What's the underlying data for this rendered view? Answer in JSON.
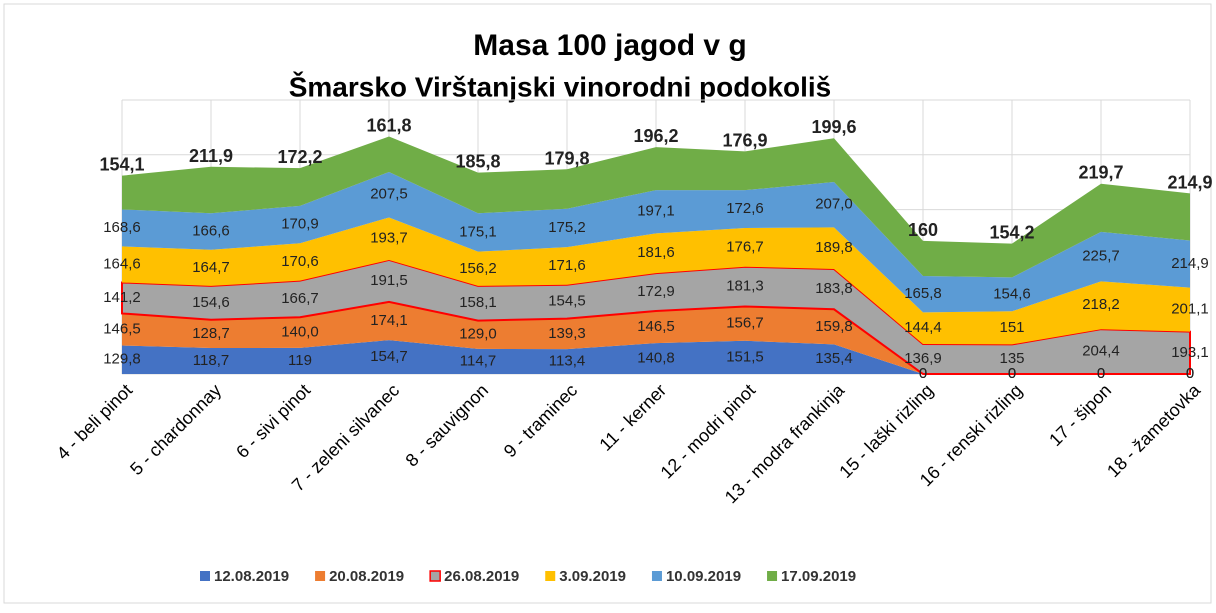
{
  "chart_data": {
    "type": "stacked_area",
    "title": "Masa 100 jagod v g",
    "subtitle": "Šmarsko Virštanjski vinorodni podokoliš",
    "categories": [
      "4 - beli pinot",
      "5 - chardonnay",
      "6 - sivi pinot",
      "7 - zeleni silvanec",
      "8 - sauvignon",
      "9 - traminec",
      "11 - kerner",
      "12 - modri pinot",
      "13 - modra frankinja",
      "15 - laški rizling",
      "16 - renski rizling",
      "17 - šipon",
      "18 - žametovka"
    ],
    "series": [
      {
        "name": "12.08.2019",
        "color": "#4472c4",
        "values": [
          129.8,
          118.7,
          119,
          154.7,
          114.7,
          113.4,
          140.8,
          151.5,
          135.4,
          0,
          0,
          0,
          0
        ],
        "value_labels": [
          "129,8",
          "118,7",
          "119",
          "154,7",
          "114,7",
          "113,4",
          "140,8",
          "151,5",
          "135,4",
          "0",
          "0",
          "0",
          "0"
        ]
      },
      {
        "name": "20.08.2019",
        "color": "#ed7d31",
        "values": [
          146.5,
          128.7,
          140.0,
          174.1,
          129.0,
          139.3,
          146.5,
          156.7,
          159.8,
          0,
          0,
          0,
          0
        ],
        "value_labels": [
          "146,5",
          "128,7",
          "140,0",
          "174,1",
          "129,0",
          "139,3",
          "146,5",
          "156,7",
          "159,8",
          "0",
          "0",
          "0",
          "0"
        ]
      },
      {
        "name": "26.08.2019",
        "color": "#a5a5a5",
        "stroke": "#ff0000",
        "values": [
          141.2,
          154.6,
          166.7,
          191.5,
          158.1,
          154.5,
          172.9,
          181.3,
          183.8,
          136.9,
          135,
          204.4,
          193.1
        ],
        "value_labels": [
          "141,2",
          "154,6",
          "166,7",
          "191,5",
          "158,1",
          "154,5",
          "172,9",
          "181,3",
          "183,8",
          "136,9",
          "135",
          "204,4",
          "193,1"
        ]
      },
      {
        "name": "3.09.2019",
        "color": "#ffc000",
        "values": [
          164.6,
          164.7,
          170.6,
          193.7,
          156.2,
          171.6,
          181.6,
          176.7,
          189.8,
          144.4,
          151,
          218.2,
          201.1
        ],
        "value_labels": [
          "164,6",
          "164,7",
          "170,6",
          "193,7",
          "156,2",
          "171,6",
          "181,6",
          "176,7",
          "189,8",
          "144,4",
          "151",
          "218,2",
          "201,1"
        ]
      },
      {
        "name": "10.09.2019",
        "color": "#5b9bd5",
        "values": [
          168.6,
          166.6,
          170.9,
          207.5,
          175.1,
          175.2,
          197.1,
          172.6,
          207.0,
          165.8,
          154.6,
          225.7,
          214.9
        ],
        "value_labels": [
          "168,6",
          "166,6",
          "170,9",
          "207,5",
          "175,1",
          "175,2",
          "197,1",
          "172,6",
          "207,0",
          "165,8",
          "154,6",
          "225,7",
          "214,9"
        ]
      },
      {
        "name": "17.09.2019",
        "color": "#70ad47",
        "bold": true,
        "values": [
          154.1,
          211.9,
          172.2,
          161.8,
          185.8,
          179.8,
          196.2,
          176.9,
          199.6,
          160,
          154.2,
          219.7,
          214.9
        ],
        "value_labels": [
          "154,1",
          "211,9",
          "172,2",
          "161,8",
          "185,8",
          "179,8",
          "196,2",
          "176,9",
          "199,6",
          "160",
          "154,2",
          "219,7",
          "214,9"
        ]
      }
    ],
    "ylim": [
      0,
      1250
    ],
    "yticks": [
      0,
      250,
      500,
      750,
      1000,
      1250
    ],
    "grid": true,
    "legend": "bottom"
  }
}
